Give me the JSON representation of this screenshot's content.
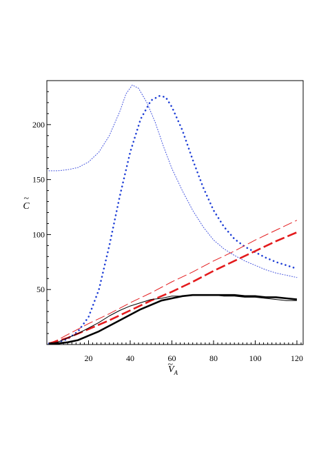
{
  "chart_data": {
    "type": "line",
    "title": "",
    "xlabel": "V",
    "xlabel_subscript": "A",
    "ylabel": "C",
    "xlim": [
      0,
      123
    ],
    "ylim": [
      0,
      240
    ],
    "xticks": [
      20,
      40,
      60,
      80,
      100,
      120
    ],
    "xtick_labels": [
      "20",
      "40",
      "60",
      "80",
      "100",
      "120"
    ],
    "yticks": [
      50,
      100,
      150,
      200
    ],
    "ytick_labels": [
      "50",
      "100",
      "150",
      "200"
    ],
    "grid": false,
    "legend": "none",
    "series": [
      {
        "color": "#3a4bdc",
        "style": "dotted-thin",
        "points": [
          [
            1,
            158
          ],
          [
            5,
            158
          ],
          [
            10,
            159
          ],
          [
            15,
            161
          ],
          [
            20,
            166
          ],
          [
            25,
            175
          ],
          [
            30,
            190
          ],
          [
            35,
            212
          ],
          [
            38,
            228
          ],
          [
            41,
            236
          ],
          [
            44,
            233
          ],
          [
            48,
            220
          ],
          [
            52,
            202
          ],
          [
            56,
            180
          ],
          [
            60,
            160
          ],
          [
            65,
            140
          ],
          [
            70,
            122
          ],
          [
            75,
            107
          ],
          [
            80,
            95
          ],
          [
            85,
            87
          ],
          [
            90,
            81
          ],
          [
            95,
            76
          ],
          [
            100,
            72
          ],
          [
            105,
            68
          ],
          [
            110,
            65
          ],
          [
            115,
            63
          ],
          [
            120,
            61
          ]
        ]
      },
      {
        "color": "#1f3fd6",
        "style": "dotted-thick",
        "points": [
          [
            1,
            1
          ],
          [
            5,
            2
          ],
          [
            10,
            5
          ],
          [
            15,
            12
          ],
          [
            20,
            25
          ],
          [
            25,
            50
          ],
          [
            30,
            90
          ],
          [
            35,
            135
          ],
          [
            40,
            175
          ],
          [
            45,
            205
          ],
          [
            50,
            222
          ],
          [
            54,
            226
          ],
          [
            57,
            225
          ],
          [
            60,
            216
          ],
          [
            65,
            195
          ],
          [
            70,
            168
          ],
          [
            75,
            143
          ],
          [
            80,
            122
          ],
          [
            85,
            107
          ],
          [
            90,
            96
          ],
          [
            95,
            89
          ],
          [
            100,
            84
          ],
          [
            105,
            79
          ],
          [
            110,
            75
          ],
          [
            115,
            72
          ],
          [
            120,
            69
          ]
        ]
      },
      {
        "color": "#e31a1c",
        "style": "dashed-thin",
        "points": [
          [
            1,
            1
          ],
          [
            5,
            4
          ],
          [
            10,
            9
          ],
          [
            20,
            19
          ],
          [
            30,
            28
          ],
          [
            40,
            38
          ],
          [
            50,
            47
          ],
          [
            60,
            57
          ],
          [
            70,
            66
          ],
          [
            80,
            76
          ],
          [
            90,
            85
          ],
          [
            100,
            95
          ],
          [
            110,
            104
          ],
          [
            120,
            113
          ]
        ]
      },
      {
        "color": "#e31a1c",
        "style": "dashed-thick",
        "points": [
          [
            1,
            1
          ],
          [
            5,
            3
          ],
          [
            10,
            6
          ],
          [
            20,
            14
          ],
          [
            30,
            22
          ],
          [
            40,
            31
          ],
          [
            50,
            40
          ],
          [
            60,
            48
          ],
          [
            70,
            57
          ],
          [
            80,
            67
          ],
          [
            90,
            76
          ],
          [
            100,
            85
          ],
          [
            110,
            94
          ],
          [
            120,
            102
          ]
        ]
      },
      {
        "color": "#000000",
        "style": "solid-thin",
        "points": [
          [
            1,
            1
          ],
          [
            5,
            2
          ],
          [
            10,
            6
          ],
          [
            15,
            10
          ],
          [
            20,
            15
          ],
          [
            25,
            20
          ],
          [
            30,
            26
          ],
          [
            35,
            31
          ],
          [
            40,
            35
          ],
          [
            45,
            38
          ],
          [
            50,
            41
          ],
          [
            55,
            42
          ],
          [
            60,
            44
          ],
          [
            65,
            44
          ],
          [
            70,
            45
          ],
          [
            75,
            45
          ],
          [
            80,
            45
          ],
          [
            85,
            44
          ],
          [
            90,
            44
          ],
          [
            95,
            43
          ],
          [
            100,
            43
          ],
          [
            105,
            42
          ],
          [
            110,
            41
          ],
          [
            115,
            40
          ],
          [
            120,
            40
          ]
        ]
      },
      {
        "color": "#000000",
        "style": "solid-thick",
        "points": [
          [
            1,
            1
          ],
          [
            5,
            1
          ],
          [
            10,
            2
          ],
          [
            15,
            4
          ],
          [
            20,
            8
          ],
          [
            25,
            12
          ],
          [
            30,
            17
          ],
          [
            35,
            22
          ],
          [
            40,
            27
          ],
          [
            45,
            32
          ],
          [
            50,
            36
          ],
          [
            55,
            40
          ],
          [
            60,
            42
          ],
          [
            65,
            44
          ],
          [
            70,
            45
          ],
          [
            75,
            45
          ],
          [
            80,
            45
          ],
          [
            85,
            45
          ],
          [
            90,
            45
          ],
          [
            95,
            44
          ],
          [
            100,
            44
          ],
          [
            105,
            43
          ],
          [
            110,
            43
          ],
          [
            115,
            42
          ],
          [
            120,
            41
          ]
        ]
      }
    ]
  }
}
